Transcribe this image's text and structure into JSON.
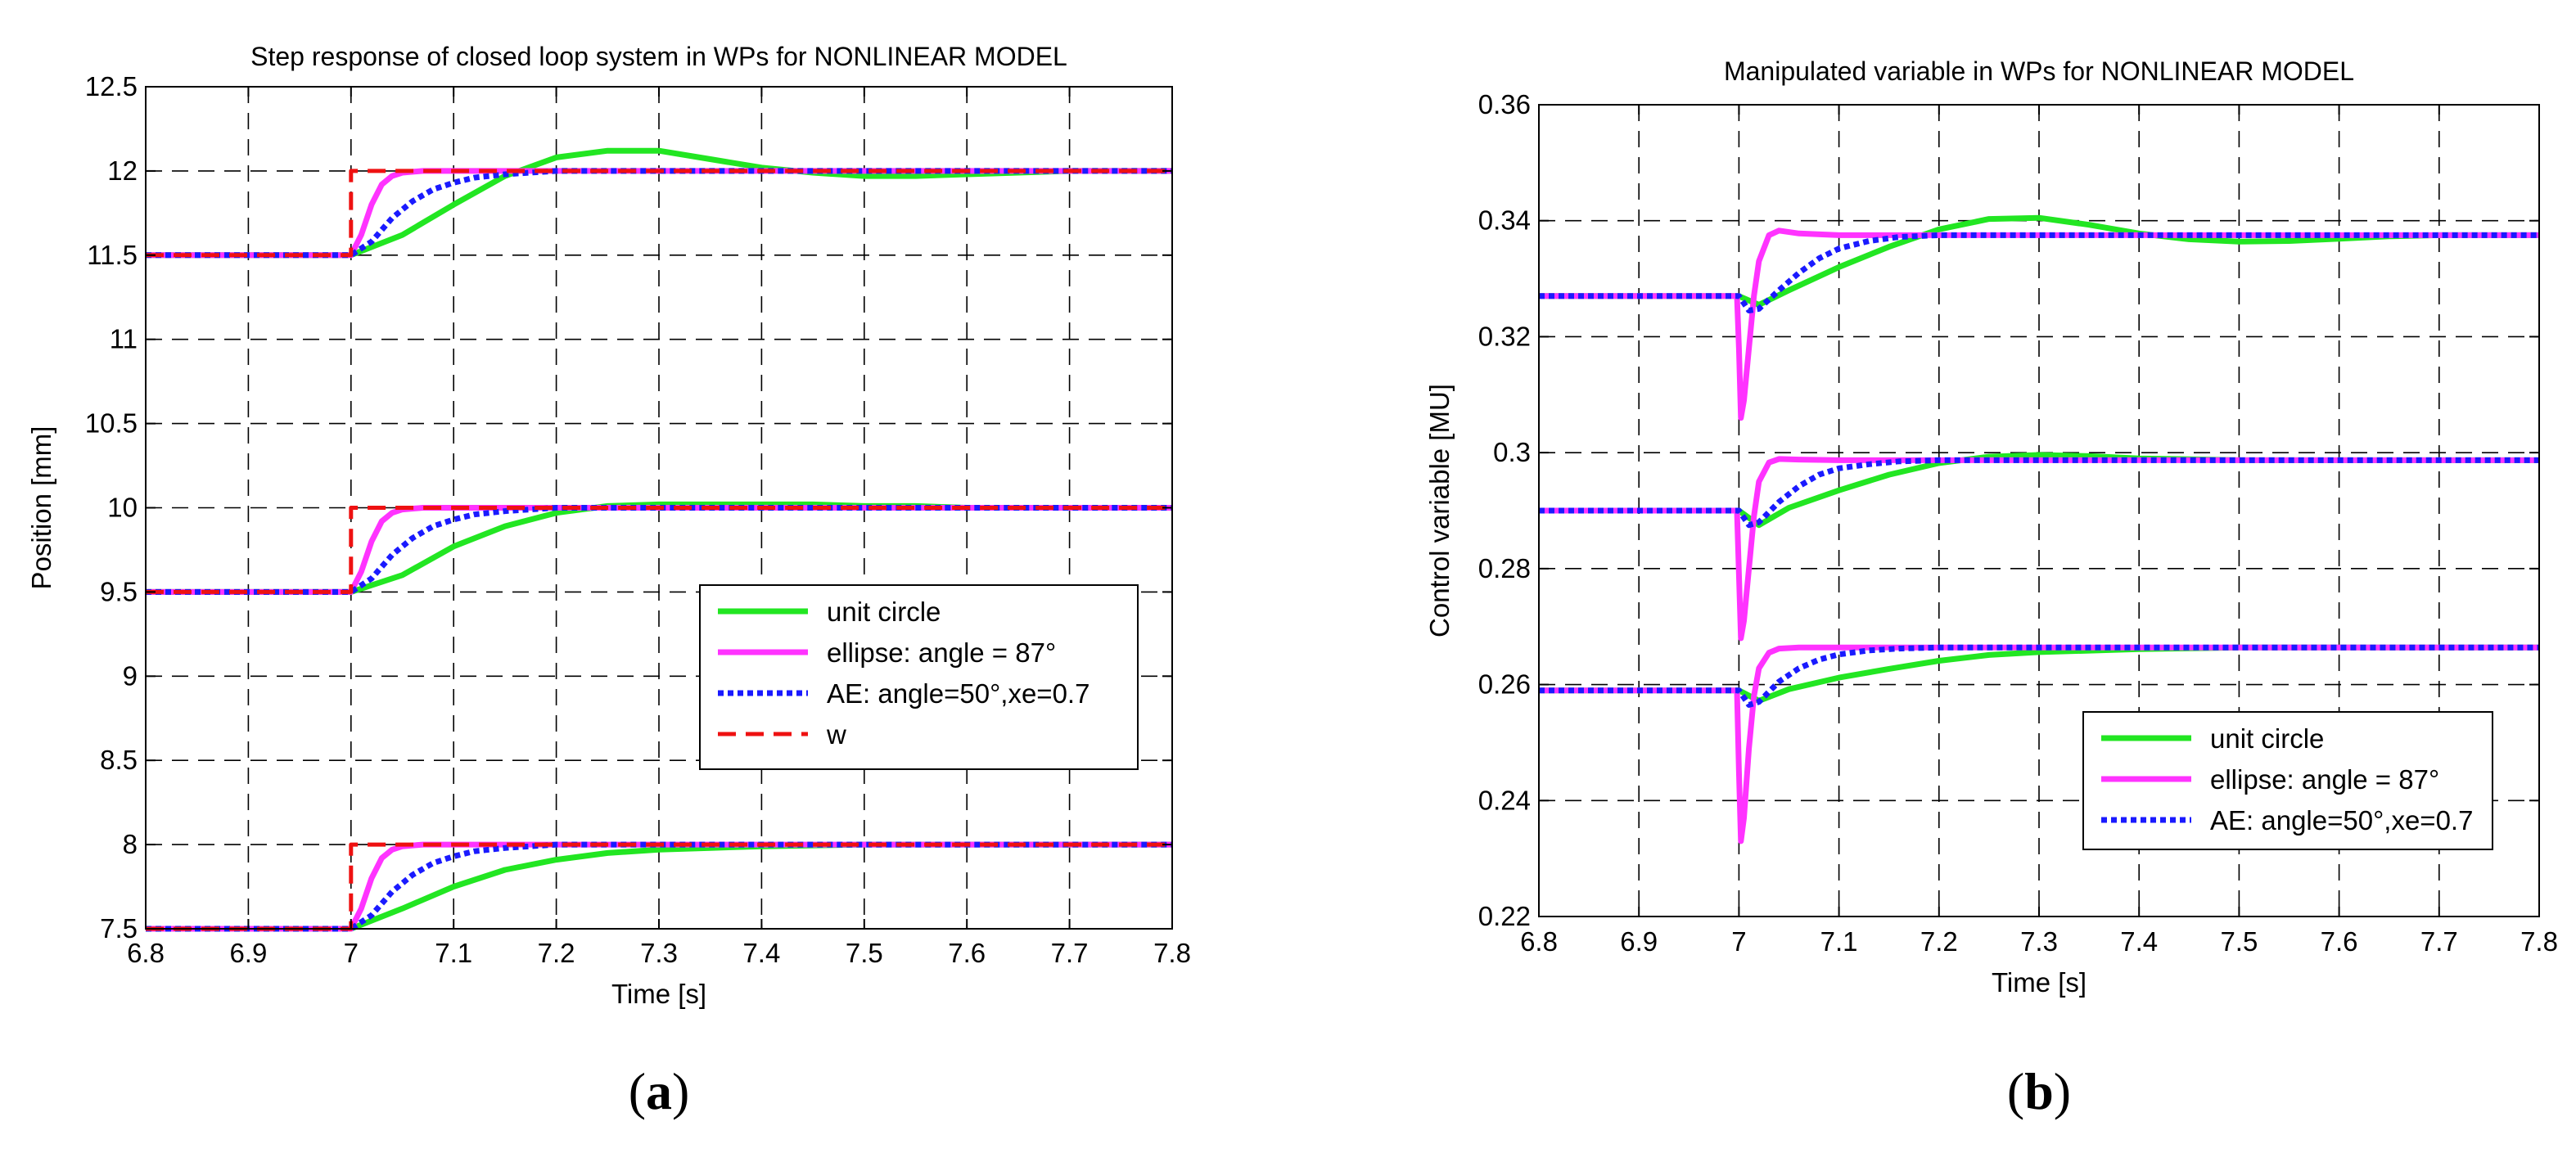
{
  "chart_data": [
    {
      "type": "line",
      "panel_label": "(a)",
      "panel_letter": "a",
      "title": "Step response of closed loop system in WPs for NONLINEAR MODEL",
      "xlabel": "Time [s]",
      "ylabel": "Position [mm]",
      "xlim": [
        6.8,
        7.8
      ],
      "ylim": [
        7.5,
        12.5
      ],
      "xticks": [
        "6.8",
        "6.9",
        "7",
        "7.1",
        "7.2",
        "7.3",
        "7.4",
        "7.5",
        "7.6",
        "7.7",
        "7.8"
      ],
      "yticks": [
        "7.5",
        "8",
        "8.5",
        "9",
        "9.5",
        "10",
        "10.5",
        "11",
        "11.5",
        "12",
        "12.5"
      ],
      "grid": true,
      "legend_position": "center-right",
      "series": [
        {
          "name": "unit circle",
          "color": "#22e622",
          "style": "solid",
          "curves": [
            {
              "x": [
                6.8,
                7.0,
                7.05,
                7.1,
                7.15,
                7.2,
                7.25,
                7.3,
                7.35,
                7.4,
                7.45,
                7.5,
                7.55,
                7.6,
                7.65,
                7.7,
                7.8
              ],
              "y": [
                11.5,
                11.5,
                11.62,
                11.8,
                11.97,
                12.08,
                12.12,
                12.12,
                12.07,
                12.02,
                11.99,
                11.97,
                11.97,
                11.98,
                11.99,
                12.0,
                12.0
              ]
            },
            {
              "x": [
                6.8,
                7.0,
                7.05,
                7.1,
                7.15,
                7.2,
                7.25,
                7.3,
                7.35,
                7.4,
                7.45,
                7.5,
                7.55,
                7.6,
                7.8
              ],
              "y": [
                9.5,
                9.5,
                9.6,
                9.77,
                9.89,
                9.97,
                10.01,
                10.02,
                10.02,
                10.02,
                10.02,
                10.01,
                10.01,
                10.0,
                10.0
              ]
            },
            {
              "x": [
                6.8,
                7.0,
                7.05,
                7.1,
                7.15,
                7.2,
                7.25,
                7.3,
                7.35,
                7.4,
                7.5,
                7.8
              ],
              "y": [
                7.5,
                7.5,
                7.62,
                7.75,
                7.85,
                7.91,
                7.95,
                7.97,
                7.98,
                7.99,
                8.0,
                8.0
              ]
            }
          ]
        },
        {
          "name": "ellipse: angle = 87°",
          "color": "#ff33ff",
          "style": "solid",
          "curves": [
            {
              "x": [
                6.8,
                7.0,
                7.01,
                7.02,
                7.03,
                7.04,
                7.05,
                7.07,
                7.1,
                7.8
              ],
              "y": [
                11.5,
                11.5,
                11.62,
                11.8,
                11.92,
                11.97,
                11.99,
                12.0,
                12.0,
                12.0
              ]
            },
            {
              "x": [
                6.8,
                7.0,
                7.01,
                7.02,
                7.03,
                7.04,
                7.05,
                7.07,
                7.1,
                7.8
              ],
              "y": [
                9.5,
                9.5,
                9.62,
                9.8,
                9.92,
                9.97,
                9.99,
                10.0,
                10.0,
                10.0
              ]
            },
            {
              "x": [
                6.8,
                7.0,
                7.01,
                7.02,
                7.03,
                7.04,
                7.05,
                7.07,
                7.1,
                7.8
              ],
              "y": [
                7.5,
                7.5,
                7.62,
                7.8,
                7.92,
                7.97,
                7.99,
                8.0,
                8.0,
                8.0
              ]
            }
          ]
        },
        {
          "name": "AE: angle=50°,xe=0.7",
          "color": "#1a1aff",
          "style": "dotted",
          "curves": [
            {
              "x": [
                6.8,
                7.0,
                7.02,
                7.04,
                7.06,
                7.08,
                7.1,
                7.12,
                7.15,
                7.2,
                7.8
              ],
              "y": [
                11.5,
                11.5,
                11.58,
                11.72,
                11.82,
                11.89,
                11.93,
                11.96,
                11.98,
                12.0,
                12.0
              ]
            },
            {
              "x": [
                6.8,
                7.0,
                7.02,
                7.04,
                7.06,
                7.08,
                7.1,
                7.12,
                7.15,
                7.2,
                7.8
              ],
              "y": [
                9.5,
                9.5,
                9.58,
                9.72,
                9.82,
                9.89,
                9.93,
                9.96,
                9.98,
                10.0,
                10.0
              ]
            },
            {
              "x": [
                6.8,
                7.0,
                7.02,
                7.04,
                7.06,
                7.08,
                7.1,
                7.12,
                7.15,
                7.2,
                7.8
              ],
              "y": [
                7.5,
                7.5,
                7.58,
                7.72,
                7.82,
                7.89,
                7.93,
                7.96,
                7.98,
                8.0,
                8.0
              ]
            }
          ]
        },
        {
          "name": "w",
          "color": "#ee1111",
          "style": "dashed",
          "curves": [
            {
              "x": [
                6.8,
                7.0,
                7.0,
                7.8
              ],
              "y": [
                11.5,
                11.5,
                12.0,
                12.0
              ]
            },
            {
              "x": [
                6.8,
                7.0,
                7.0,
                7.8
              ],
              "y": [
                9.5,
                9.5,
                10.0,
                10.0
              ]
            },
            {
              "x": [
                6.8,
                7.0,
                7.0,
                7.8
              ],
              "y": [
                7.5,
                7.5,
                8.0,
                8.0
              ]
            }
          ]
        }
      ]
    },
    {
      "type": "line",
      "panel_label": "(b)",
      "panel_letter": "b",
      "title": "Manipulated variable in WPs for NONLINEAR MODEL",
      "xlabel": "Time [s]",
      "ylabel": "Control variable [MU]",
      "xlim": [
        6.8,
        7.8
      ],
      "ylim": [
        0.22,
        0.36
      ],
      "xticks": [
        "6.8",
        "6.9",
        "7",
        "7.1",
        "7.2",
        "7.3",
        "7.4",
        "7.5",
        "7.6",
        "7.7",
        "7.8"
      ],
      "yticks": [
        "0.22",
        "0.24",
        "0.26",
        "0.28",
        "0.3",
        "0.32",
        "0.34",
        "0.36"
      ],
      "grid": true,
      "legend_position": "bottom-right",
      "series": [
        {
          "name": "unit circle",
          "color": "#22e622",
          "style": "solid",
          "curves": [
            {
              "x": [
                6.8,
                7.0,
                7.02,
                7.05,
                7.1,
                7.15,
                7.2,
                7.25,
                7.3,
                7.35,
                7.4,
                7.45,
                7.5,
                7.55,
                7.6,
                7.65,
                7.7,
                7.8
              ],
              "y": [
                0.327,
                0.327,
                0.3255,
                0.328,
                0.332,
                0.3355,
                0.3385,
                0.3403,
                0.3405,
                0.3393,
                0.3378,
                0.3368,
                0.3364,
                0.3365,
                0.3369,
                0.3373,
                0.3375,
                0.3375
              ]
            },
            {
              "x": [
                6.8,
                7.0,
                7.02,
                7.05,
                7.1,
                7.15,
                7.2,
                7.25,
                7.3,
                7.35,
                7.4,
                7.5,
                7.8
              ],
              "y": [
                0.29,
                0.29,
                0.2875,
                0.2905,
                0.2935,
                0.2962,
                0.2982,
                0.2993,
                0.2996,
                0.2994,
                0.299,
                0.2987,
                0.2987
              ]
            },
            {
              "x": [
                6.8,
                7.0,
                7.02,
                7.05,
                7.1,
                7.15,
                7.2,
                7.25,
                7.3,
                7.4,
                7.5,
                7.8
              ],
              "y": [
                0.259,
                0.259,
                0.2572,
                0.2592,
                0.2612,
                0.2627,
                0.2641,
                0.2651,
                0.2656,
                0.2661,
                0.2664,
                0.2664
              ]
            }
          ]
        },
        {
          "name": "ellipse: angle = 87°",
          "color": "#ff33ff",
          "style": "solid",
          "curves": [
            {
              "x": [
                6.8,
                6.998,
                7.0,
                7.002,
                7.005,
                7.01,
                7.015,
                7.02,
                7.03,
                7.04,
                7.06,
                7.1,
                7.8
              ],
              "y": [
                0.327,
                0.327,
                0.318,
                0.306,
                0.309,
                0.318,
                0.327,
                0.333,
                0.3375,
                0.3383,
                0.3378,
                0.3375,
                0.3375
              ]
            },
            {
              "x": [
                6.8,
                6.998,
                7.0,
                7.002,
                7.005,
                7.01,
                7.015,
                7.02,
                7.03,
                7.04,
                7.06,
                7.1,
                7.8
              ],
              "y": [
                0.29,
                0.29,
                0.279,
                0.268,
                0.271,
                0.28,
                0.289,
                0.295,
                0.2983,
                0.2989,
                0.2988,
                0.2987,
                0.2987
              ]
            },
            {
              "x": [
                6.8,
                6.998,
                7.0,
                7.002,
                7.005,
                7.01,
                7.015,
                7.02,
                7.03,
                7.04,
                7.06,
                7.1,
                7.8
              ],
              "y": [
                0.259,
                0.259,
                0.245,
                0.233,
                0.237,
                0.249,
                0.258,
                0.2628,
                0.2655,
                0.2662,
                0.2664,
                0.2664,
                0.2664
              ]
            }
          ]
        },
        {
          "name": "AE: angle=50°,xe=0.7",
          "color": "#1a1aff",
          "style": "dotted",
          "curves": [
            {
              "x": [
                6.8,
                7.0,
                7.01,
                7.02,
                7.04,
                7.06,
                7.08,
                7.1,
                7.13,
                7.16,
                7.2,
                7.8
              ],
              "y": [
                0.327,
                0.327,
                0.3245,
                0.3248,
                0.328,
                0.331,
                0.3335,
                0.3352,
                0.3365,
                0.3372,
                0.3375,
                0.3375
              ]
            },
            {
              "x": [
                6.8,
                7.0,
                7.01,
                7.02,
                7.04,
                7.06,
                7.08,
                7.1,
                7.13,
                7.16,
                7.2,
                7.8
              ],
              "y": [
                0.29,
                0.29,
                0.2875,
                0.288,
                0.2915,
                0.2942,
                0.2962,
                0.2973,
                0.298,
                0.2985,
                0.2987,
                0.2987
              ]
            },
            {
              "x": [
                6.8,
                7.0,
                7.01,
                7.02,
                7.04,
                7.06,
                7.08,
                7.1,
                7.13,
                7.16,
                7.2,
                7.8
              ],
              "y": [
                0.259,
                0.259,
                0.2565,
                0.257,
                0.2605,
                0.2628,
                0.2643,
                0.2652,
                0.2659,
                0.2662,
                0.2664,
                0.2664
              ]
            }
          ]
        }
      ]
    }
  ]
}
